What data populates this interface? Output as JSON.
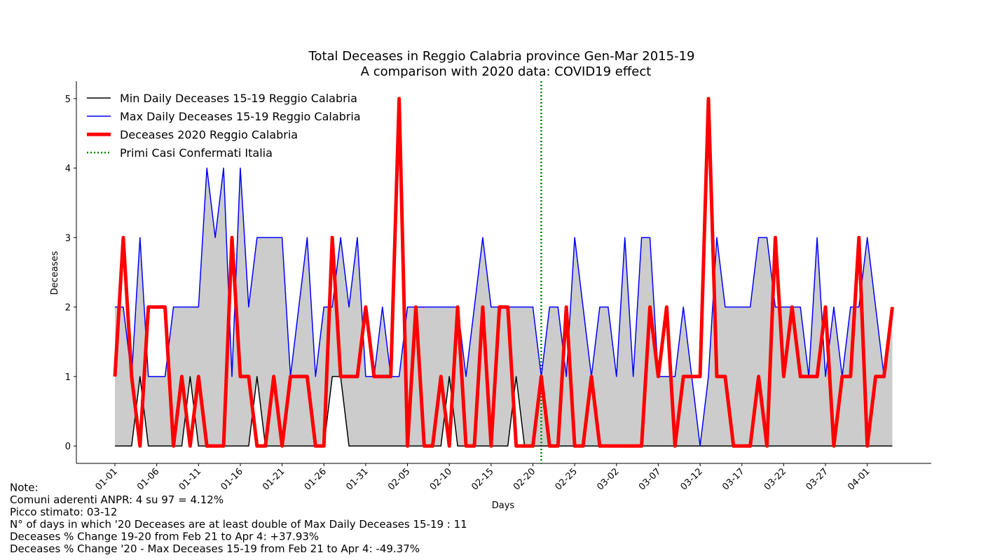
{
  "chart_data": {
    "type": "line",
    "title": "Total Deceases in Reggio Calabria province Gen-Mar 2015-19",
    "subtitle": "A comparison with 2020 data: COVID19 effect",
    "x_label": "Days",
    "y_label": "Deceases",
    "categories": [
      "01-01",
      null,
      null,
      null,
      null,
      "01-06",
      null,
      null,
      null,
      null,
      "01-11",
      null,
      null,
      null,
      null,
      "01-16",
      null,
      null,
      null,
      null,
      "01-21",
      null,
      null,
      null,
      null,
      "01-26",
      null,
      null,
      null,
      null,
      "01-31",
      null,
      null,
      null,
      null,
      "02-05",
      null,
      null,
      null,
      null,
      "02-10",
      null,
      null,
      null,
      null,
      "02-15",
      null,
      null,
      null,
      null,
      "02-20",
      null,
      null,
      null,
      null,
      "02-25",
      null,
      null,
      null,
      null,
      "03-02",
      null,
      null,
      null,
      null,
      "03-07",
      null,
      null,
      null,
      null,
      "03-12",
      null,
      null,
      null,
      null,
      "03-17",
      null,
      null,
      null,
      null,
      "03-22",
      null,
      null,
      null,
      null,
      "03-27",
      null,
      null,
      null,
      null,
      "04-01",
      null,
      null,
      null
    ],
    "series": [
      {
        "name": "Min Daily Deceases 15-19 Reggio Calabria",
        "color": "#000000",
        "width": 1.5,
        "values": [
          0,
          0,
          0,
          1,
          0,
          0,
          0,
          0,
          0,
          1,
          0,
          0,
          0,
          0,
          0,
          0,
          0,
          1,
          0,
          0,
          0,
          0,
          0,
          0,
          0,
          0,
          1,
          1,
          0,
          0,
          0,
          0,
          0,
          0,
          0,
          0,
          0,
          0,
          0,
          0,
          1,
          0,
          0,
          0,
          0,
          0,
          0,
          0,
          1,
          0,
          0,
          0,
          0,
          0,
          0,
          0,
          0,
          0,
          0,
          0,
          0,
          0,
          0,
          0,
          0,
          0,
          0,
          0,
          0,
          0,
          0,
          0,
          0,
          0,
          0,
          0,
          0,
          0,
          0,
          0,
          0,
          0,
          0,
          0,
          0,
          0,
          0,
          0,
          0,
          0,
          0,
          0,
          0,
          0
        ]
      },
      {
        "name": "Max Daily Deceases 15-19 Reggio Calabria",
        "color": "#0000ff",
        "width": 1.5,
        "values": [
          2,
          2,
          1,
          3,
          1,
          1,
          1,
          2,
          2,
          2,
          2,
          4,
          3,
          4,
          1,
          4,
          2,
          3,
          3,
          3,
          3,
          1,
          2,
          3,
          1,
          2,
          2,
          3,
          2,
          3,
          1,
          1,
          2,
          1,
          1,
          2,
          2,
          2,
          2,
          2,
          2,
          2,
          1,
          2,
          3,
          2,
          2,
          2,
          2,
          2,
          2,
          1,
          2,
          2,
          1,
          3,
          2,
          1,
          2,
          2,
          1,
          3,
          1,
          3,
          3,
          1,
          1,
          1,
          2,
          1,
          0,
          1,
          3,
          2,
          2,
          2,
          2,
          3,
          3,
          2,
          2,
          2,
          2,
          1,
          3,
          1,
          2,
          1,
          2,
          2,
          3,
          2,
          1,
          2
        ]
      },
      {
        "name": "Deceases 2020 Reggio Calabria",
        "color": "#ff0000",
        "width": 5,
        "values": [
          1,
          3,
          1,
          0,
          2,
          2,
          2,
          0,
          1,
          0,
          1,
          0,
          0,
          0,
          3,
          1,
          1,
          0,
          0,
          1,
          0,
          1,
          1,
          1,
          0,
          0,
          3,
          1,
          1,
          1,
          2,
          1,
          1,
          1,
          5,
          0,
          2,
          0,
          0,
          1,
          0,
          2,
          0,
          0,
          2,
          0,
          2,
          2,
          0,
          0,
          0,
          1,
          0,
          0,
          2,
          0,
          0,
          1,
          0,
          0,
          0,
          0,
          0,
          0,
          2,
          1,
          2,
          0,
          1,
          1,
          1,
          5,
          1,
          1,
          0,
          0,
          0,
          1,
          0,
          3,
          1,
          2,
          1,
          1,
          1,
          2,
          0,
          1,
          1,
          3,
          0,
          1,
          1,
          2
        ]
      }
    ],
    "fill_color": "#cccccc",
    "vline": {
      "name": "Primi Casi Confermati Italia",
      "color": "#008000",
      "day_index": 51
    },
    "ylim": [
      -0.25,
      5.25
    ],
    "yticks": [
      0,
      1,
      2,
      3,
      4,
      5
    ],
    "legend": "upper left",
    "notes": [
      "Note:",
      "Comuni aderenti ANPR: 4 su 97 = 4.12%",
      "Picco stimato: 03-12",
      "N° of  days in which '20 Deceases are at least double of Max Daily Deceases 15-19   : 11",
      "Deceases % Change 19-20 from Feb 21 to Apr 4: +37.93%",
      "Deceases % Change '20 - Max Deceases 15-19 from Feb 21 to Apr 4: -49.37%"
    ]
  }
}
